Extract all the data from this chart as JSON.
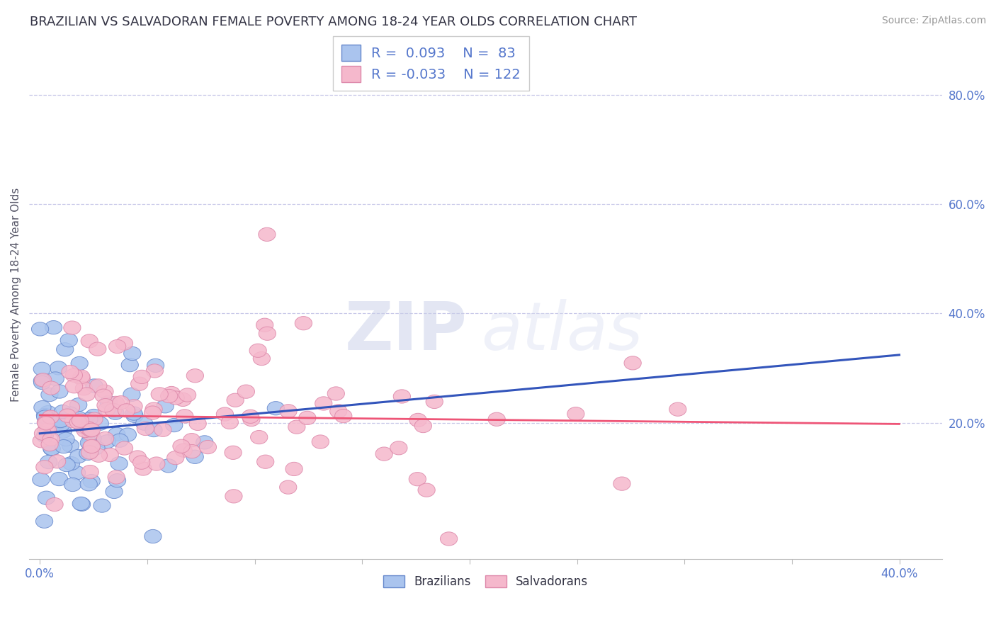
{
  "title": "BRAZILIAN VS SALVADORAN FEMALE POVERTY AMONG 18-24 YEAR OLDS CORRELATION CHART",
  "source": "Source: ZipAtlas.com",
  "ylabel": "Female Poverty Among 18-24 Year Olds",
  "xlim": [
    -0.005,
    0.42
  ],
  "ylim": [
    -0.05,
    0.92
  ],
  "xtick_vals": [
    0.0,
    0.05,
    0.1,
    0.15,
    0.2,
    0.25,
    0.3,
    0.35,
    0.4
  ],
  "xtick_show_labels": [
    0.0,
    0.4
  ],
  "xtick_label_map": {
    "0.0": "0.0%",
    "0.4": "40.0%"
  },
  "yticks_right": [
    0.2,
    0.4,
    0.6,
    0.8
  ],
  "ytick_labels_right": [
    "20.0%",
    "40.0%",
    "60.0%",
    "80.0%"
  ],
  "grid_color": "#c8c8e8",
  "background_color": "#ffffff",
  "blue_edge_color": "#6688cc",
  "pink_edge_color": "#dd88aa",
  "blue_fill_color": "#aac4ee",
  "pink_fill_color": "#f5b8cc",
  "trend_blue_color": "#3355bb",
  "trend_pink_color": "#ee5577",
  "tick_label_color": "#5577cc",
  "R_blue": 0.093,
  "N_blue": 83,
  "R_pink": -0.033,
  "N_pink": 122,
  "watermark_zip": "ZIP",
  "watermark_atlas": "atlas",
  "legend_labels": [
    "Brazilians",
    "Salvadorans"
  ],
  "title_fontsize": 13,
  "source_fontsize": 10,
  "axis_label_fontsize": 11,
  "tick_fontsize": 12,
  "legend_fontsize": 14
}
